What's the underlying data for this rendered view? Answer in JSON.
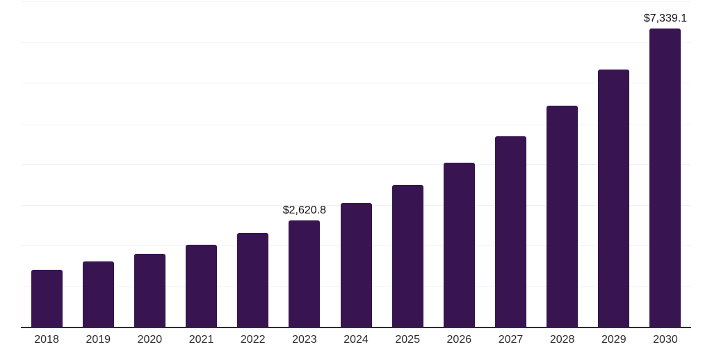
{
  "chart_data": {
    "type": "bar",
    "title": "",
    "xlabel": "",
    "ylabel": "",
    "categories": [
      "2018",
      "2019",
      "2020",
      "2021",
      "2022",
      "2023",
      "2024",
      "2025",
      "2026",
      "2027",
      "2028",
      "2029",
      "2030"
    ],
    "values": [
      1405,
      1600,
      1790,
      2015,
      2300,
      2620.8,
      3045,
      3495,
      4040,
      4685,
      5440,
      6330,
      7339.1
    ],
    "value_labels": {
      "2023": "$2,620.8",
      "2030": "$7,339.1"
    },
    "ylim": [
      0,
      8000
    ],
    "gridline_step": 1000,
    "grid": "horizontal-only",
    "legend": "none",
    "y_tick_labels_visible": false,
    "colors": {
      "bar": "#381450",
      "gridline": "#f2f2f2",
      "axis": "#2e2e2e",
      "tick_label": "#2b2b2b",
      "value_label": "#111111",
      "background": "#ffffff"
    }
  }
}
